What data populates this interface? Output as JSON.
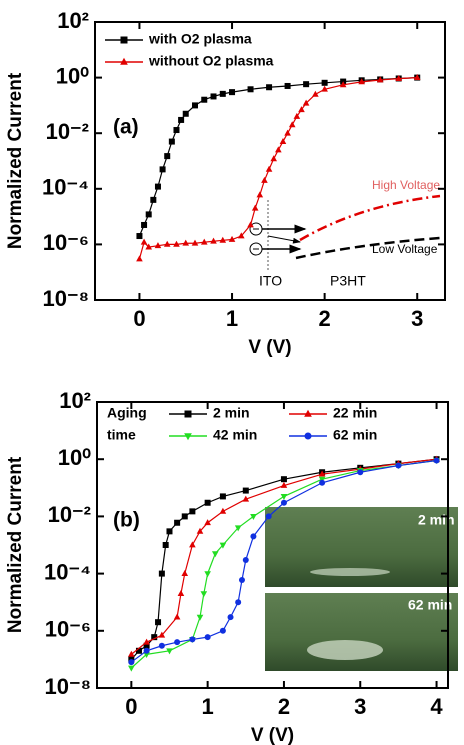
{
  "chart_data": [
    {
      "type": "line",
      "log_y": true,
      "xlabel": "V (V)",
      "ylabel": "Normalized Current",
      "xlim": [
        -0.48,
        3.3
      ],
      "xticks": [
        0,
        1,
        2,
        3
      ],
      "ylim": [
        1e-08,
        100
      ],
      "yticks": [
        {
          "value": 100,
          "label": "10²"
        },
        {
          "value": 1,
          "label": "10⁰"
        },
        {
          "value": 0.01,
          "label": "10⁻²"
        },
        {
          "value": 0.0001,
          "label": "10⁻⁴"
        },
        {
          "value": 1e-06,
          "label": "10⁻⁶"
        },
        {
          "value": 1e-08,
          "label": "10⁻⁸"
        }
      ],
      "legend": "upper left",
      "series": [
        {
          "name": "with O2 plasma",
          "color": "#000000",
          "marker": "square",
          "x": [
            0,
            0.05,
            0.1,
            0.15,
            0.2,
            0.25,
            0.3,
            0.35,
            0.4,
            0.45,
            0.5,
            0.6,
            0.7,
            0.8,
            0.9,
            1.0,
            1.2,
            1.4,
            1.6,
            1.8,
            2.0,
            2.2,
            2.4,
            2.6,
            2.8,
            3.0
          ],
          "values": [
            2e-06,
            5e-06,
            1.2e-05,
            4e-05,
            0.00012,
            0.0005,
            0.0015,
            0.005,
            0.013,
            0.03,
            0.05,
            0.1,
            0.16,
            0.21,
            0.26,
            0.3,
            0.38,
            0.45,
            0.5,
            0.58,
            0.65,
            0.72,
            0.8,
            0.86,
            0.93,
            1.0
          ]
        },
        {
          "name": "without O2 plasma",
          "color": "#e00000",
          "marker": "triangle",
          "x": [
            0,
            0.05,
            0.1,
            0.2,
            0.3,
            0.4,
            0.5,
            0.6,
            0.7,
            0.8,
            0.9,
            1.0,
            1.1,
            1.2,
            1.25,
            1.3,
            1.35,
            1.4,
            1.45,
            1.5,
            1.55,
            1.6,
            1.65,
            1.7,
            1.75,
            1.8,
            1.9,
            2.0,
            2.2,
            2.4,
            2.6,
            2.8,
            3.0
          ],
          "values": [
            3e-07,
            1.2e-06,
            8e-07,
            9e-07,
            1e-06,
            1e-06,
            1.1e-06,
            1.1e-06,
            1.2e-06,
            1.3e-06,
            1.4e-06,
            1.5e-06,
            2e-06,
            5e-06,
            2e-05,
            6e-05,
            0.0002,
            0.0005,
            0.0012,
            0.0025,
            0.005,
            0.01,
            0.02,
            0.04,
            0.07,
            0.12,
            0.25,
            0.38,
            0.55,
            0.7,
            0.82,
            0.92,
            1.0
          ]
        }
      ],
      "annotations": [
        "(a)",
        "High Voltage",
        "Low Voltage",
        "ITO",
        "P3HT"
      ]
    },
    {
      "type": "line",
      "log_y": true,
      "xlabel": "V (V)",
      "ylabel": "Normalized Current",
      "xlim": [
        -0.45,
        4.15
      ],
      "xticks": [
        0,
        1,
        2,
        3,
        4
      ],
      "ylim": [
        1e-08,
        100
      ],
      "yticks": [
        {
          "value": 100,
          "label": "10²"
        },
        {
          "value": 1,
          "label": "10⁰"
        },
        {
          "value": 0.01,
          "label": "10⁻²"
        },
        {
          "value": 0.0001,
          "label": "10⁻⁴"
        },
        {
          "value": 1e-06,
          "label": "10⁻⁶"
        },
        {
          "value": 1e-08,
          "label": "10⁻⁸"
        }
      ],
      "legend": "upper left",
      "legend_title": [
        "Aging",
        "time"
      ],
      "series": [
        {
          "name": "2 min",
          "color": "#000000",
          "marker": "square",
          "x": [
            0,
            0.1,
            0.2,
            0.3,
            0.35,
            0.4,
            0.45,
            0.5,
            0.6,
            0.7,
            0.8,
            1.0,
            1.2,
            1.5,
            2.0,
            2.5,
            3.0,
            3.5,
            4.0
          ],
          "values": [
            1e-07,
            2e-07,
            3e-07,
            6e-07,
            2e-06,
            0.0001,
            0.001,
            0.003,
            0.006,
            0.01,
            0.015,
            0.03,
            0.05,
            0.08,
            0.2,
            0.35,
            0.5,
            0.7,
            1.0
          ]
        },
        {
          "name": "22 min",
          "color": "#e00000",
          "marker": "triangle",
          "x": [
            0,
            0.2,
            0.4,
            0.6,
            0.65,
            0.7,
            0.8,
            0.9,
            1.0,
            1.2,
            1.5,
            2.0,
            2.5,
            3.0,
            3.5,
            4.0
          ],
          "values": [
            1.5e-07,
            4e-07,
            7e-07,
            3e-06,
            2e-05,
            0.0001,
            0.001,
            0.003,
            0.006,
            0.015,
            0.04,
            0.12,
            0.3,
            0.45,
            0.7,
            1.0
          ]
        },
        {
          "name": "42 min",
          "color": "#22dd22",
          "marker": "triangle-down",
          "x": [
            0,
            0.2,
            0.5,
            0.8,
            0.9,
            0.95,
            1.0,
            1.1,
            1.2,
            1.4,
            1.6,
            2.0,
            2.5,
            3.0,
            3.5,
            4.0
          ],
          "values": [
            5e-08,
            1.5e-07,
            2e-07,
            5e-07,
            3e-06,
            2e-05,
            0.0001,
            0.0005,
            0.001,
            0.004,
            0.01,
            0.05,
            0.2,
            0.4,
            0.6,
            0.9
          ]
        },
        {
          "name": "62 min",
          "color": "#1030e0",
          "marker": "circle",
          "x": [
            0,
            0.2,
            0.4,
            0.6,
            0.8,
            1.0,
            1.2,
            1.3,
            1.4,
            1.45,
            1.5,
            1.6,
            1.8,
            2.0,
            2.5,
            3.0,
            3.5,
            4.0
          ],
          "values": [
            8e-08,
            2e-07,
            3e-07,
            4e-07,
            5e-07,
            6e-07,
            1e-06,
            3e-06,
            1e-05,
            6e-05,
            0.0003,
            0.002,
            0.01,
            0.03,
            0.15,
            0.35,
            0.6,
            0.9
          ]
        }
      ],
      "annotations": [
        "(b)",
        "2 min",
        "62 min"
      ]
    }
  ]
}
